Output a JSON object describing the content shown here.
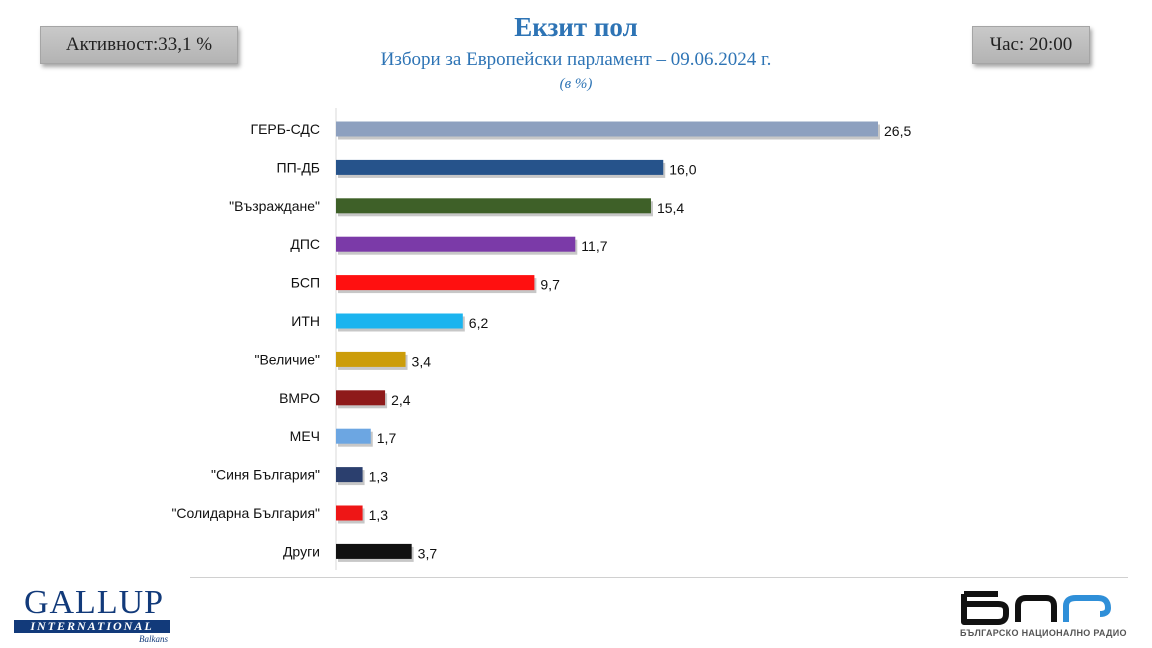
{
  "header": {
    "title": "Екзит пол",
    "subtitle": "Избори за Европейски парламент – 09.06.2024  г.",
    "unit": "(в %)",
    "turnout": "Активност:33,1 %",
    "time": "Час: 20:00"
  },
  "colors": {
    "title": "#2e74b5",
    "bars": [
      "#8da0bf",
      "#26538b",
      "#3e6028",
      "#7b3aa8",
      "#ff1010",
      "#1bb4ef",
      "#cc9d0a",
      "#8e1a1a",
      "#6ca6e2",
      "#2b3f6e",
      "#ee1616",
      "#111111"
    ]
  },
  "chart_data": {
    "type": "bar",
    "orientation": "horizontal",
    "categories": [
      "ГЕРБ-СДС",
      "ПП-ДБ",
      "\"Възраждане\"",
      "ДПС",
      "БСП",
      "ИТН",
      "\"Величие\"",
      "ВМРО",
      "МЕЧ",
      "\"Синя България\"",
      "\"Солидарна България\"",
      "Други"
    ],
    "values": [
      26.5,
      16.0,
      15.4,
      11.7,
      9.7,
      6.2,
      3.4,
      2.4,
      1.7,
      1.3,
      1.3,
      3.7
    ],
    "value_labels": [
      "26,5",
      "16,0",
      "15,4",
      "11,7",
      "9,7",
      "6,2",
      "3,4",
      "2,4",
      "1,7",
      "1,3",
      "1,3",
      "3,7"
    ],
    "title": "Екзит пол",
    "xlabel": "",
    "ylabel": "",
    "xlim": [
      0,
      26.5
    ],
    "grid": false,
    "legend": "none"
  },
  "logos": {
    "left_word": "GALLUP",
    "left_band": "INTERNATIONAL",
    "left_sub": "Balkans",
    "right_tagline": "БЪЛГАРСКО НАЦИОНАЛНО РАДИО"
  }
}
